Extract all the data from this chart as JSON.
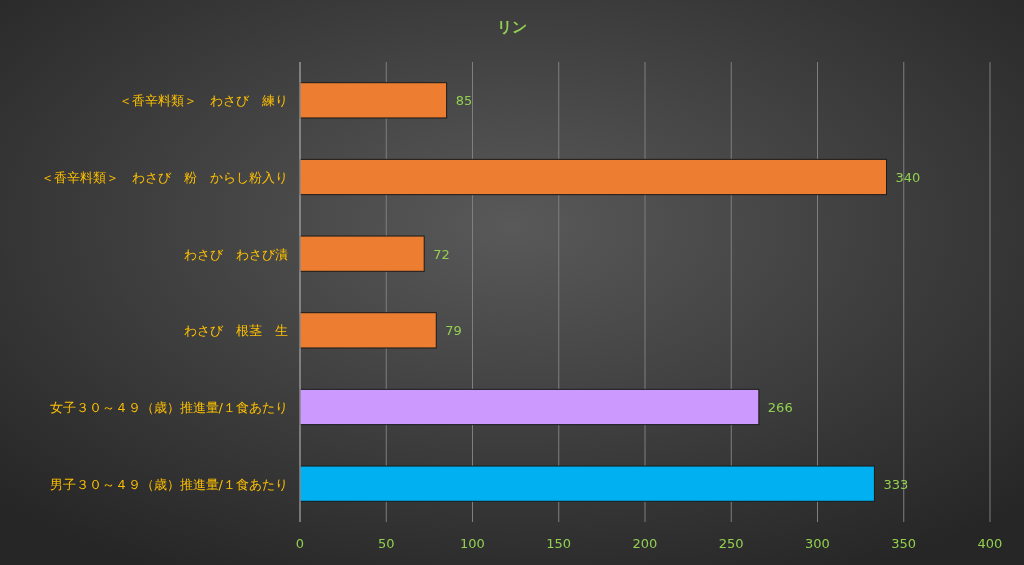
{
  "chart_data": {
    "type": "bar",
    "orientation": "horizontal",
    "title": "リン",
    "categories": [
      "＜香辛料類＞　わさび　練り",
      "＜香辛料類＞　わさび　粉　からし粉入り",
      "わさび　わさび漬",
      "わさび　根茎　生",
      "女子３０～４９（歳）推進量/１食あたり",
      "男子３０～４９（歳）推進量/１食あたり"
    ],
    "values": [
      85,
      340,
      72,
      79,
      266,
      333
    ],
    "colors": [
      "#ed7d31",
      "#ed7d31",
      "#ed7d31",
      "#ed7d31",
      "#cc99ff",
      "#00b0f0"
    ],
    "xlim": [
      0,
      400
    ],
    "xticks": [
      0,
      50,
      100,
      150,
      200,
      250,
      300,
      350,
      400
    ],
    "grid": "x",
    "data_labels": true
  }
}
